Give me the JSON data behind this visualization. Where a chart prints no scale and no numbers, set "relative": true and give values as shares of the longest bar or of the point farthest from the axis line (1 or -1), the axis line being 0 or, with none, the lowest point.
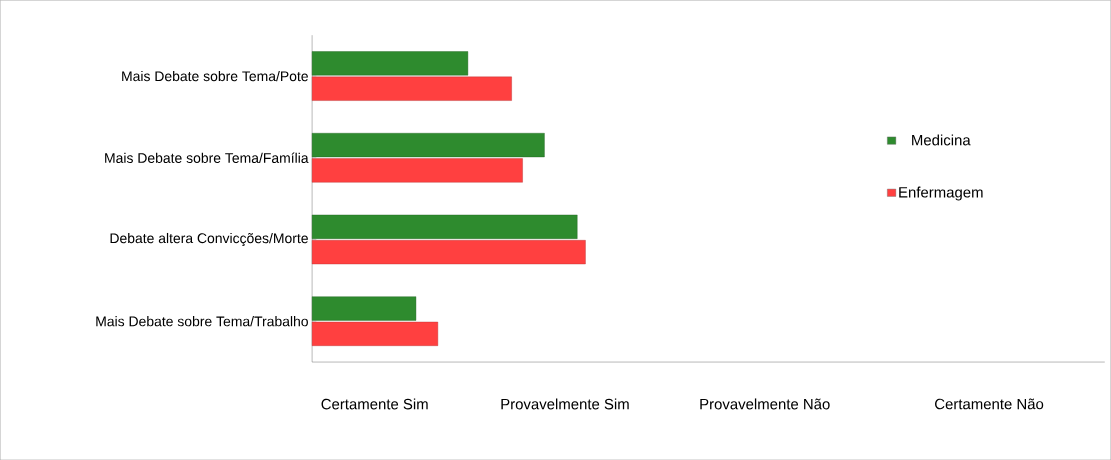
{
  "chart_data": {
    "type": "bar",
    "orientation": "horizontal",
    "relative": true,
    "legend": "right",
    "categories": [
      "Mais Debate sobre Tema/Pote",
      "Mais Debate sobre Tema/Família",
      "Debate altera Convicções/Morte",
      "Mais Debate sobre Tema/Trabalho"
    ],
    "series": [
      {
        "name": "Medicina",
        "color": "#2e8b2e",
        "values": [
          0.57,
          0.85,
          0.97,
          0.38
        ]
      },
      {
        "name": "Enfermagem",
        "color": "#ff4040",
        "values": [
          0.73,
          0.77,
          1.0,
          0.46
        ]
      }
    ],
    "annotations": [
      "Certamente Sim",
      "Provavelmente Sim",
      "Provavelmente Não",
      "Certamente Não"
    ]
  }
}
